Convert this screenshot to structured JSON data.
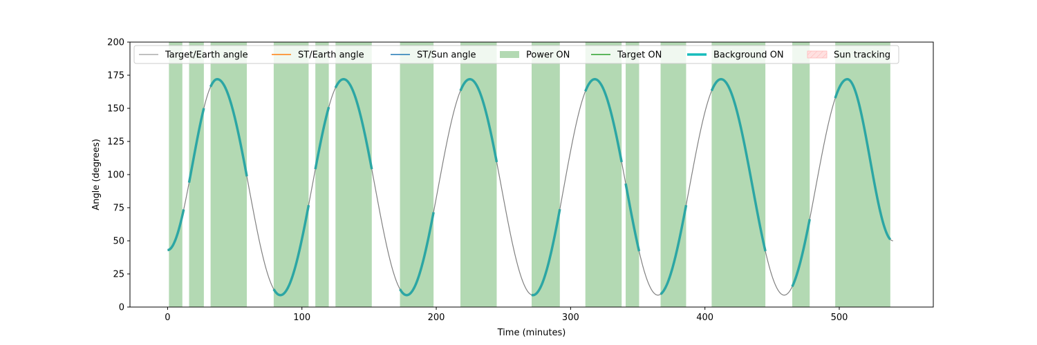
{
  "chart_data": {
    "type": "line",
    "xlabel": "Time (minutes)",
    "ylabel": "Angle (degrees)",
    "xlim": [
      -28,
      570
    ],
    "ylim": [
      0,
      200
    ],
    "x_ticks": [
      0,
      100,
      200,
      300,
      400,
      500
    ],
    "y_ticks": [
      0,
      25,
      50,
      75,
      100,
      125,
      150,
      175,
      200
    ],
    "grid": false,
    "legend_placement": "top",
    "target_earth_angle": {
      "x": [
        0,
        37,
        84,
        131,
        178,
        225,
        272,
        318,
        365,
        412,
        459,
        506,
        540
      ],
      "y": [
        43,
        172,
        9,
        172,
        9,
        172,
        9,
        172,
        9,
        172,
        9,
        172,
        50
      ]
    },
    "power_on_intervals": [
      [
        1,
        11
      ],
      [
        16,
        27
      ],
      [
        32,
        59
      ],
      [
        79,
        105
      ],
      [
        110,
        120
      ],
      [
        125,
        152
      ],
      [
        173,
        198
      ],
      [
        218,
        245
      ],
      [
        271,
        292
      ],
      [
        311,
        338
      ],
      [
        341,
        351
      ],
      [
        367,
        386
      ],
      [
        405,
        445
      ],
      [
        465,
        478
      ],
      [
        497,
        538
      ]
    ],
    "background_on_intervals": [
      [
        0,
        12
      ],
      [
        16,
        27
      ],
      [
        32,
        59
      ],
      [
        79,
        105
      ],
      [
        110,
        120
      ],
      [
        125,
        152
      ],
      [
        173,
        198
      ],
      [
        218,
        245
      ],
      [
        271,
        292
      ],
      [
        311,
        338
      ],
      [
        341,
        351
      ],
      [
        367,
        386
      ],
      [
        405,
        445
      ],
      [
        465,
        478
      ],
      [
        497,
        538
      ]
    ],
    "legend": [
      {
        "label": "Target/Earth angle",
        "kind": "line",
        "color": "#808080",
        "width": 1
      },
      {
        "label": "ST/Earth angle",
        "kind": "line",
        "color": "#ff7f0e",
        "width": 1.5
      },
      {
        "label": "ST/Sun angle",
        "kind": "line",
        "color": "#1f77b4",
        "width": 1.5
      },
      {
        "label": "Power ON",
        "kind": "patch",
        "color": "#b3d9b3"
      },
      {
        "label": "Target ON",
        "kind": "line",
        "color": "#2ca02c",
        "width": 1.5
      },
      {
        "label": "Background ON",
        "kind": "line",
        "color": "#17bcbc",
        "width": 3.5
      },
      {
        "label": "Sun tracking",
        "kind": "hatch",
        "color": "#ffd6d6"
      }
    ],
    "colors": {
      "power_on": "#b3d9b3",
      "background_on": "#2ca6a4",
      "target_earth": "#808080"
    }
  }
}
